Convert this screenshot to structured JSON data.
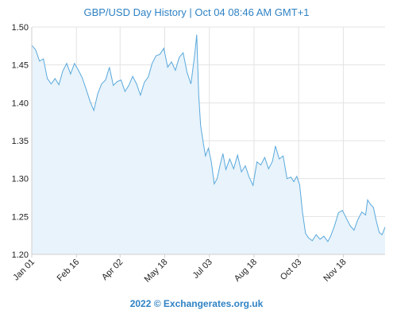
{
  "header": {
    "title": "GBP/USD  Day History | Oct 04 08:46 AM GMT+1"
  },
  "footer": {
    "text": "2022 © Exchangerates.org.uk"
  },
  "colors": {
    "line": "#5aa9dc",
    "fill": "#e8f3fb",
    "text": "#2f82c4",
    "grid": "#e3e3e3",
    "axis": "#cfcfcf"
  },
  "chart_data": {
    "type": "area",
    "title": "GBP/USD  Day History | Oct 04 08:46 AM GMT+1",
    "xlabel": "",
    "ylabel": "",
    "xlim": [
      "2022-01-01",
      "2022-12-31"
    ],
    "ylim": [
      1.2,
      1.5
    ],
    "y_ticks": [
      "1.20",
      "1.25",
      "1.30",
      "1.35",
      "1.40",
      "1.45",
      "1.50"
    ],
    "x_ticks": [
      {
        "label": "Jan 01",
        "date": "2022-01-01"
      },
      {
        "label": "Feb 16",
        "date": "2022-02-16"
      },
      {
        "label": "Apr 02",
        "date": "2022-04-02"
      },
      {
        "label": "May 18",
        "date": "2022-05-18"
      },
      {
        "label": "Jul 03",
        "date": "2022-07-03"
      },
      {
        "label": "Aug 18",
        "date": "2022-08-18"
      },
      {
        "label": "Oct 03",
        "date": "2022-10-03"
      },
      {
        "label": "Nov 18",
        "date": "2022-11-18"
      }
    ],
    "grid": true,
    "series": [
      {
        "points": [
          [
            "2022-01-01",
            1.476
          ],
          [
            "2022-01-05",
            1.47
          ],
          [
            "2022-01-09",
            1.455
          ],
          [
            "2022-01-13",
            1.458
          ],
          [
            "2022-01-17",
            1.432
          ],
          [
            "2022-01-21",
            1.425
          ],
          [
            "2022-01-25",
            1.432
          ],
          [
            "2022-01-29",
            1.424
          ],
          [
            "2022-02-02",
            1.442
          ],
          [
            "2022-02-06",
            1.452
          ],
          [
            "2022-02-10",
            1.438
          ],
          [
            "2022-02-14",
            1.452
          ],
          [
            "2022-02-18",
            1.443
          ],
          [
            "2022-02-22",
            1.433
          ],
          [
            "2022-02-26",
            1.418
          ],
          [
            "2022-03-02",
            1.402
          ],
          [
            "2022-03-06",
            1.39
          ],
          [
            "2022-03-10",
            1.412
          ],
          [
            "2022-03-14",
            1.425
          ],
          [
            "2022-03-18",
            1.43
          ],
          [
            "2022-03-22",
            1.447
          ],
          [
            "2022-03-26",
            1.423
          ],
          [
            "2022-03-30",
            1.428
          ],
          [
            "2022-04-03",
            1.43
          ],
          [
            "2022-04-07",
            1.415
          ],
          [
            "2022-04-11",
            1.423
          ],
          [
            "2022-04-15",
            1.435
          ],
          [
            "2022-04-19",
            1.425
          ],
          [
            "2022-04-23",
            1.41
          ],
          [
            "2022-04-27",
            1.427
          ],
          [
            "2022-05-01",
            1.434
          ],
          [
            "2022-05-05",
            1.452
          ],
          [
            "2022-05-09",
            1.462
          ],
          [
            "2022-05-13",
            1.464
          ],
          [
            "2022-05-17",
            1.472
          ],
          [
            "2022-05-21",
            1.447
          ],
          [
            "2022-05-25",
            1.454
          ],
          [
            "2022-05-29",
            1.443
          ],
          [
            "2022-06-02",
            1.46
          ],
          [
            "2022-06-06",
            1.466
          ],
          [
            "2022-06-10",
            1.44
          ],
          [
            "2022-06-14",
            1.425
          ],
          [
            "2022-06-18",
            1.465
          ],
          [
            "2022-06-20",
            1.49
          ],
          [
            "2022-06-22",
            1.41
          ],
          [
            "2022-06-24",
            1.37
          ],
          [
            "2022-06-27",
            1.345
          ],
          [
            "2022-06-29",
            1.33
          ],
          [
            "2022-07-02",
            1.34
          ],
          [
            "2022-07-05",
            1.322
          ],
          [
            "2022-07-08",
            1.293
          ],
          [
            "2022-07-11",
            1.3
          ],
          [
            "2022-07-14",
            1.318
          ],
          [
            "2022-07-17",
            1.333
          ],
          [
            "2022-07-20",
            1.312
          ],
          [
            "2022-07-24",
            1.326
          ],
          [
            "2022-07-28",
            1.313
          ],
          [
            "2022-08-01",
            1.331
          ],
          [
            "2022-08-05",
            1.309
          ],
          [
            "2022-08-09",
            1.317
          ],
          [
            "2022-08-13",
            1.302
          ],
          [
            "2022-08-17",
            1.291
          ],
          [
            "2022-08-21",
            1.322
          ],
          [
            "2022-08-25",
            1.318
          ],
          [
            "2022-08-29",
            1.328
          ],
          [
            "2022-09-02",
            1.313
          ],
          [
            "2022-09-06",
            1.323
          ],
          [
            "2022-09-09",
            1.343
          ],
          [
            "2022-09-13",
            1.326
          ],
          [
            "2022-09-17",
            1.33
          ],
          [
            "2022-09-21",
            1.3
          ],
          [
            "2022-09-25",
            1.302
          ],
          [
            "2022-09-28",
            1.296
          ],
          [
            "2022-10-01",
            1.303
          ],
          [
            "2022-10-04",
            1.292
          ],
          [
            "2022-10-07",
            1.255
          ],
          [
            "2022-10-10",
            1.228
          ],
          [
            "2022-10-13",
            1.222
          ],
          [
            "2022-10-17",
            1.218
          ],
          [
            "2022-10-21",
            1.226
          ],
          [
            "2022-10-25",
            1.22
          ],
          [
            "2022-10-29",
            1.224
          ],
          [
            "2022-11-02",
            1.217
          ],
          [
            "2022-11-05",
            1.224
          ],
          [
            "2022-11-09",
            1.238
          ],
          [
            "2022-11-13",
            1.255
          ],
          [
            "2022-11-17",
            1.258
          ],
          [
            "2022-11-21",
            1.248
          ],
          [
            "2022-11-25",
            1.238
          ],
          [
            "2022-11-29",
            1.232
          ],
          [
            "2022-12-03",
            1.246
          ],
          [
            "2022-12-07",
            1.256
          ],
          [
            "2022-12-11",
            1.252
          ],
          [
            "2022-12-13",
            1.272
          ],
          [
            "2022-12-16",
            1.266
          ],
          [
            "2022-12-19",
            1.262
          ],
          [
            "2022-12-22",
            1.244
          ],
          [
            "2022-12-25",
            1.229
          ],
          [
            "2022-12-28",
            1.226
          ],
          [
            "2022-12-31",
            1.236
          ]
        ]
      }
    ]
  }
}
